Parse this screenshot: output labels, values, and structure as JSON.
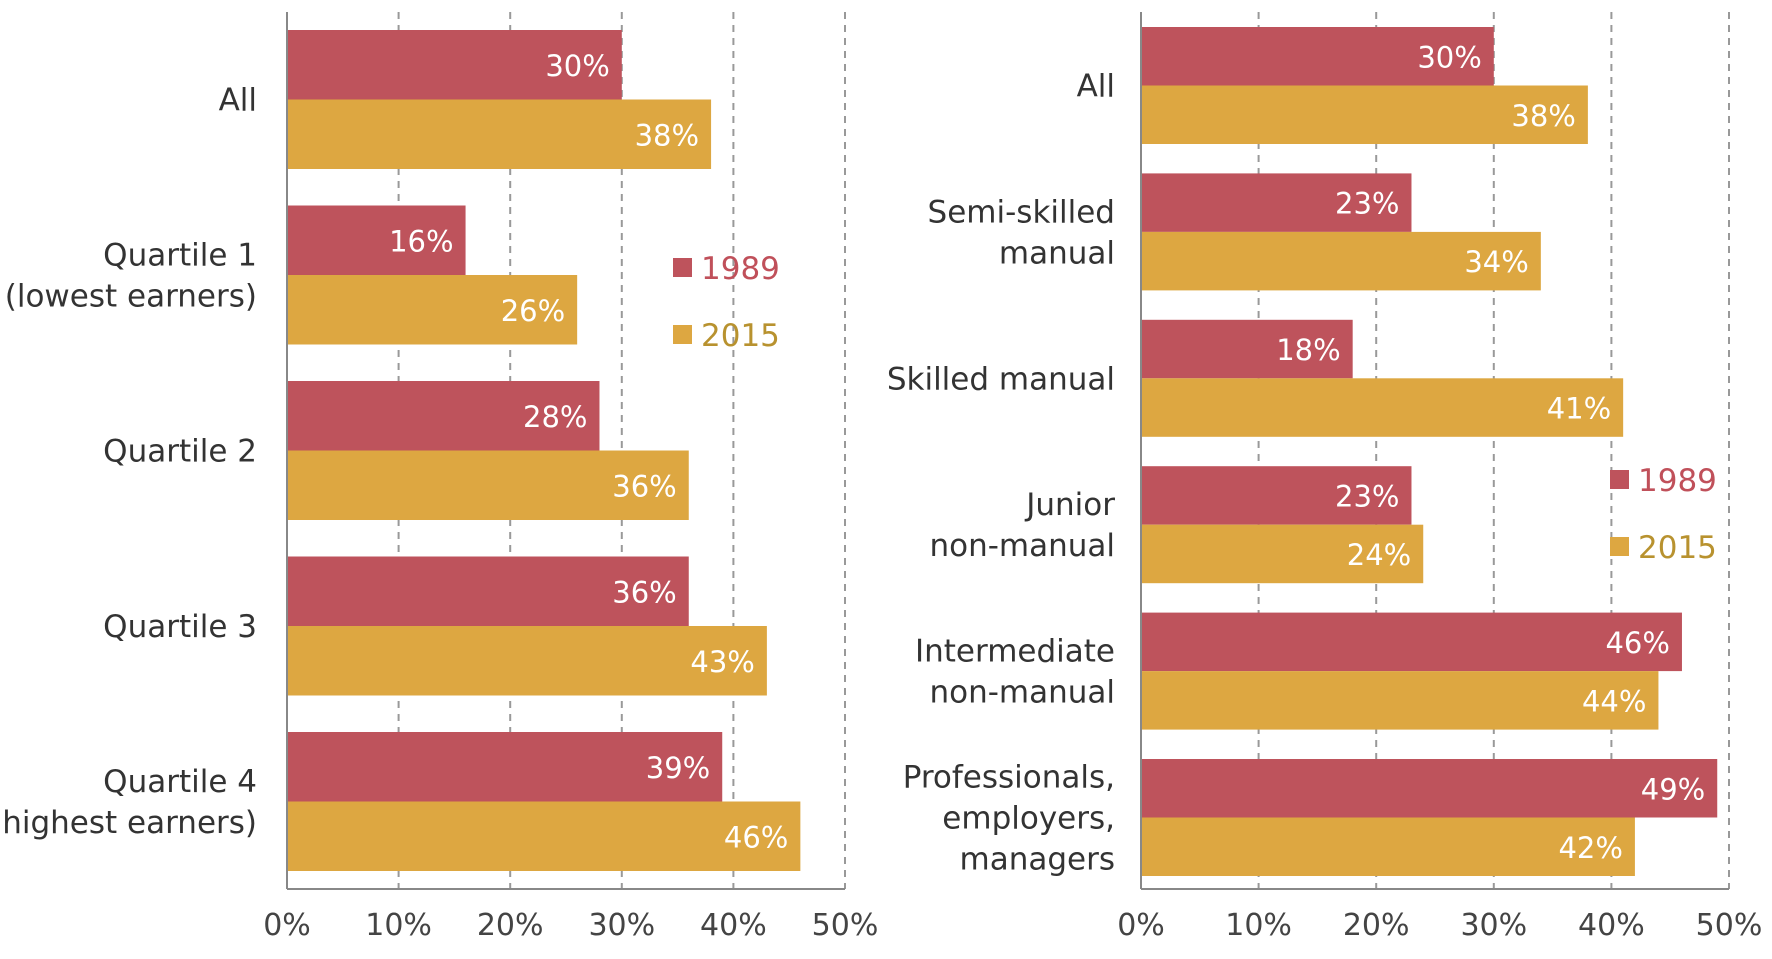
{
  "colors": {
    "1989": "#BE535C",
    "2015": "#DDA741",
    "legend_1989_text": "#C0505A",
    "legend_2015_text": "#B8922F",
    "grid": "#999999",
    "axis": "#888888",
    "label": "#333333"
  },
  "chart_data": [
    {
      "type": "bar",
      "orientation": "horizontal",
      "categories": [
        [
          "All"
        ],
        [
          "Quartile 1",
          "(lowest earners)"
        ],
        [
          "Quartile 2"
        ],
        [
          "Quartile 3"
        ],
        [
          "Quartile 4",
          "(highest earners)"
        ]
      ],
      "series": [
        {
          "name": "1989",
          "values": [
            30,
            16,
            28,
            36,
            39
          ],
          "labels": [
            "30%",
            "16%",
            "28%",
            "36%",
            "39%"
          ]
        },
        {
          "name": "2015",
          "values": [
            38,
            26,
            36,
            43,
            46
          ],
          "labels": [
            "38%",
            "26%",
            "36%",
            "43%",
            "46%"
          ]
        }
      ],
      "xlim": [
        0,
        50
      ],
      "xticks": [
        "0%",
        "10%",
        "20%",
        "30%",
        "40%",
        "50%"
      ],
      "grid": "vertical dashed",
      "legend": "right-upper"
    },
    {
      "type": "bar",
      "orientation": "horizontal",
      "categories": [
        [
          "All"
        ],
        [
          "Semi-skilled",
          "manual"
        ],
        [
          "Skilled manual"
        ],
        [
          "Junior",
          "non-manual"
        ],
        [
          "Intermediate",
          "non-manual"
        ],
        [
          "Professionals,",
          "employers,",
          "managers"
        ]
      ],
      "series": [
        {
          "name": "1989",
          "values": [
            30,
            23,
            18,
            23,
            46,
            49
          ],
          "labels": [
            "30%",
            "23%",
            "18%",
            "23%",
            "46%",
            "49%"
          ]
        },
        {
          "name": "2015",
          "values": [
            38,
            34,
            41,
            24,
            44,
            42
          ],
          "labels": [
            "38%",
            "34%",
            "41%",
            "24%",
            "44%",
            "42%"
          ]
        }
      ],
      "xlim": [
        0,
        50
      ],
      "xticks": [
        "0%",
        "10%",
        "20%",
        "30%",
        "40%",
        "50%"
      ],
      "grid": "vertical dashed",
      "legend": "right-middle"
    }
  ]
}
